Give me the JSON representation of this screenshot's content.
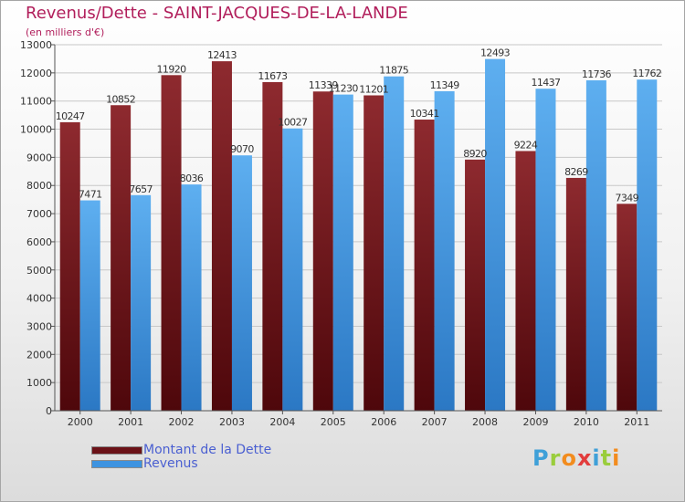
{
  "chart_data": {
    "type": "bar",
    "title": "Revenus/Dette - SAINT-JACQUES-DE-LA-LANDE",
    "subtitle": "(en milliers d'€)",
    "categories": [
      "2000",
      "2001",
      "2002",
      "2003",
      "2004",
      "2005",
      "2006",
      "2007",
      "2008",
      "2009",
      "2010",
      "2011"
    ],
    "series": [
      {
        "name": "Montant de la Dette",
        "color": "#6b1218",
        "values": [
          10247,
          10852,
          11920,
          12413,
          11673,
          11339,
          11201,
          10341,
          8920,
          9224,
          8269,
          7349
        ],
        "labels": [
          "10247",
          "10852",
          "11920",
          "12413",
          "11673",
          "11339",
          "11201",
          "10341",
          "8920",
          "9224",
          "8269",
          "7349"
        ]
      },
      {
        "name": "Revenus",
        "color": "#3d93e0",
        "values": [
          7471,
          7657,
          8036,
          9070,
          10027,
          11230,
          11875,
          11349,
          12493,
          11437,
          11736,
          11762
        ],
        "labels": [
          "7471",
          "7657",
          "8036",
          "9070",
          "10027",
          "11230",
          "11875",
          "11349",
          "12493",
          "11437",
          "11736",
          "11762"
        ]
      }
    ],
    "ylim": [
      0,
      13000
    ],
    "yticks": [
      0,
      1000,
      2000,
      3000,
      4000,
      5000,
      6000,
      7000,
      8000,
      9000,
      10000,
      11000,
      12000,
      13000
    ],
    "grid": true,
    "legend": "bottom-left"
  },
  "legend": {
    "items": [
      {
        "label": "Montant de la Dette",
        "color": "#6b1218"
      },
      {
        "label": "Revenus",
        "color": "#3d93e0"
      }
    ]
  },
  "logo": {
    "text": "Proxiti",
    "letters": [
      {
        "ch": "P",
        "color": "#3fa0d8"
      },
      {
        "ch": "r",
        "color": "#9acd3c"
      },
      {
        "ch": "o",
        "color": "#f28c1e"
      },
      {
        "ch": "x",
        "color": "#e23c3c"
      },
      {
        "ch": "i",
        "color": "#3fa0d8"
      },
      {
        "ch": "t",
        "color": "#9acd3c"
      },
      {
        "ch": "i",
        "color": "#f28c1e"
      }
    ]
  }
}
